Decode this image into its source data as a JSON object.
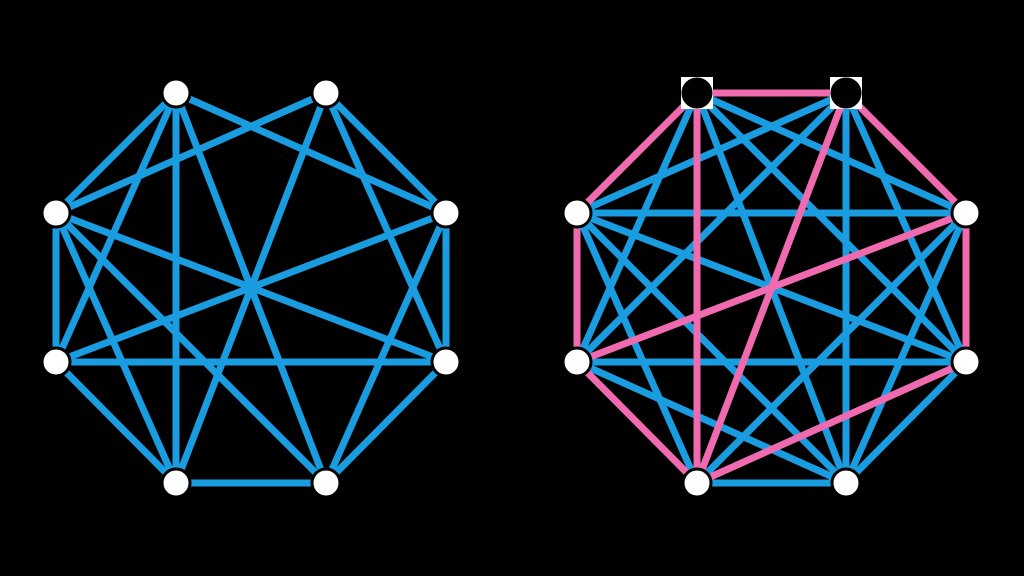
{
  "colors": {
    "background": "#000000",
    "edge": "#1a9de0",
    "highlight_edge": "#f06ab0",
    "node_fill_white": "#ffffff",
    "node_fill_black": "#000000",
    "node_stroke": "#000000"
  },
  "graphs": [
    {
      "id": "left-graph",
      "nodes": [
        {
          "id": 0,
          "fill": "white"
        },
        {
          "id": 1,
          "fill": "white"
        },
        {
          "id": 2,
          "fill": "white"
        },
        {
          "id": 3,
          "fill": "white"
        },
        {
          "id": 4,
          "fill": "white"
        },
        {
          "id": 5,
          "fill": "white"
        },
        {
          "id": 6,
          "fill": "white"
        },
        {
          "id": 7,
          "fill": "white"
        }
      ],
      "edges": [
        [
          0,
          2
        ],
        [
          0,
          3
        ],
        [
          0,
          4
        ],
        [
          0,
          6
        ],
        [
          0,
          7
        ],
        [
          1,
          2
        ],
        [
          1,
          3
        ],
        [
          1,
          5
        ],
        [
          1,
          6
        ],
        [
          2,
          4
        ],
        [
          2,
          5
        ],
        [
          2,
          6
        ],
        [
          2,
          7
        ],
        [
          3,
          4
        ],
        [
          3,
          5
        ],
        [
          3,
          7
        ],
        [
          4,
          5
        ],
        [
          4,
          6
        ],
        [
          5,
          7
        ],
        [
          6,
          7
        ]
      ],
      "highlight_edges": []
    },
    {
      "id": "right-graph",
      "nodes": [
        {
          "id": 0,
          "fill": "black"
        },
        {
          "id": 1,
          "fill": "black"
        },
        {
          "id": 2,
          "fill": "white"
        },
        {
          "id": 3,
          "fill": "white"
        },
        {
          "id": 4,
          "fill": "white"
        },
        {
          "id": 5,
          "fill": "white"
        },
        {
          "id": 6,
          "fill": "white"
        },
        {
          "id": 7,
          "fill": "white"
        }
      ],
      "edges": "complete",
      "highlight_edges": [
        [
          0,
          1
        ],
        [
          1,
          3
        ],
        [
          3,
          5
        ],
        [
          5,
          6
        ],
        [
          6,
          4
        ],
        [
          4,
          2
        ],
        [
          2,
          0
        ],
        [
          0,
          6
        ],
        [
          1,
          6
        ],
        [
          4,
          3
        ]
      ]
    }
  ]
}
